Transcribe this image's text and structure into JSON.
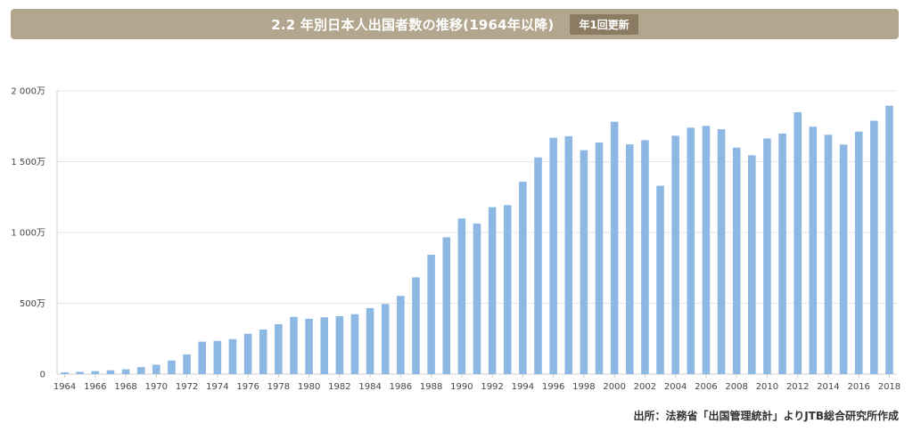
{
  "header": {
    "title": "2.2 年別日本人出国者数の推移(1964年以降)",
    "badge": "年1回更新"
  },
  "source": "出所：法務省「出国管理統計」よりJTB総合研究所作成",
  "colors": {
    "bar": "#8db8e3",
    "header": "#b3a68f",
    "badge": "#8b7b62",
    "grid": "#e6e6e6",
    "axis": "#cccccc"
  },
  "chart_data": {
    "type": "bar",
    "title": "",
    "xlabel": "",
    "ylabel": "",
    "ylim": [
      0,
      20000000
    ],
    "y_ticks": [
      {
        "value": 0,
        "label": "0"
      },
      {
        "value": 5000000,
        "label": "500万"
      },
      {
        "value": 10000000,
        "label": "1 000万"
      },
      {
        "value": 15000000,
        "label": "1 500万"
      },
      {
        "value": 20000000,
        "label": "2 000万"
      }
    ],
    "grid": true,
    "categories": [
      "1964",
      "1965",
      "1966",
      "1967",
      "1968",
      "1969",
      "1970",
      "1971",
      "1972",
      "1973",
      "1974",
      "1975",
      "1976",
      "1977",
      "1978",
      "1979",
      "1980",
      "1981",
      "1982",
      "1983",
      "1984",
      "1985",
      "1986",
      "1987",
      "1988",
      "1989",
      "1990",
      "1991",
      "1992",
      "1993",
      "1994",
      "1995",
      "1996",
      "1997",
      "1998",
      "1999",
      "2000",
      "2001",
      "2002",
      "2003",
      "2004",
      "2005",
      "2006",
      "2007",
      "2008",
      "2009",
      "2010",
      "2011",
      "2012",
      "2013",
      "2014",
      "2015",
      "2016",
      "2017",
      "2018"
    ],
    "x_tick_labels": [
      "1964",
      "1966",
      "1968",
      "1970",
      "1972",
      "1974",
      "1976",
      "1978",
      "1980",
      "1982",
      "1984",
      "1986",
      "1988",
      "1990",
      "1992",
      "1994",
      "1996",
      "1998",
      "2000",
      "2002",
      "2004",
      "2006",
      "2008",
      "2010",
      "2012",
      "2014",
      "2016",
      "2018"
    ],
    "values": [
      130000,
      160000,
      210000,
      270000,
      340000,
      490000,
      660000,
      960000,
      1390000,
      2290000,
      2340000,
      2470000,
      2850000,
      3150000,
      3530000,
      4040000,
      3910000,
      4010000,
      4090000,
      4230000,
      4660000,
      4950000,
      5520000,
      6830000,
      8430000,
      9660000,
      10990000,
      10630000,
      11790000,
      11930000,
      13580000,
      15300000,
      16690000,
      16800000,
      15810000,
      16360000,
      17820000,
      16220000,
      16520000,
      13300000,
      16830000,
      17400000,
      17530000,
      17290000,
      15990000,
      15450000,
      16640000,
      16990000,
      18490000,
      17470000,
      16900000,
      16210000,
      17120000,
      17890000,
      18950000
    ]
  }
}
